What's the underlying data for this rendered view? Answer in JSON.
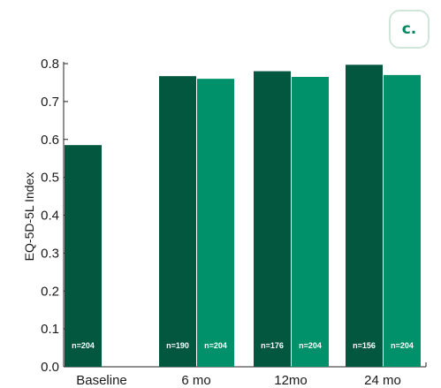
{
  "panel_label": "c.",
  "chart_data": {
    "type": "bar",
    "title": "",
    "xlabel": "",
    "ylabel": "EQ-5D-5L Index",
    "ylim": [
      0,
      0.8
    ],
    "yticks": [
      "0.0",
      "0.1",
      "0.2",
      "0.3",
      "0.4",
      "0.5",
      "0.6",
      "0.7",
      "0.8"
    ],
    "categories": [
      "Baseline",
      "6 mo",
      "12mo",
      "24 mo"
    ],
    "grid": false,
    "legend": "none",
    "series": [
      {
        "color": "#03573f",
        "values": [
          0.585,
          0.767,
          0.78,
          0.797
        ],
        "labels": [
          "n=204",
          "n=190",
          "n=176",
          "n=156"
        ]
      },
      {
        "color": "#00916a",
        "values": [
          null,
          0.76,
          0.765,
          0.77
        ],
        "labels": [
          "",
          "n=204",
          "n=204",
          "n=204"
        ]
      }
    ]
  }
}
